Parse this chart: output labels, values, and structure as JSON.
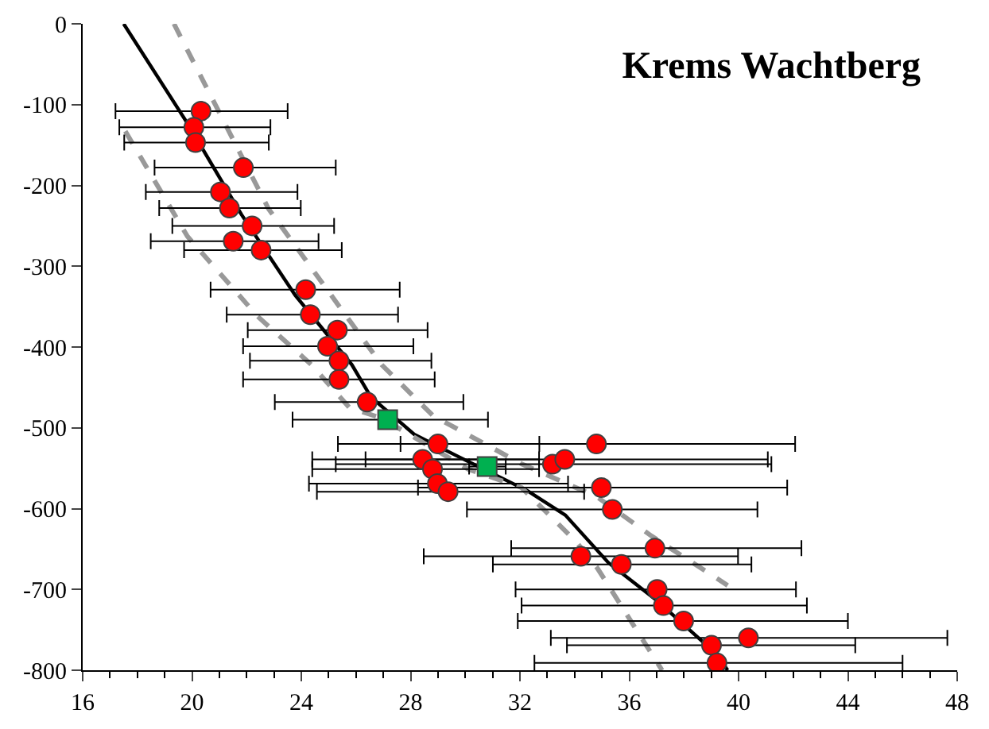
{
  "chart_data": {
    "type": "scatter",
    "title": "Krems Wachtberg",
    "xlim": [
      16,
      48
    ],
    "xticks": [
      16,
      20,
      24,
      28,
      32,
      36,
      40,
      44,
      48
    ],
    "ylim": [
      -800,
      0
    ],
    "yticks": [
      -800,
      -700,
      -600,
      -500,
      -400,
      -300,
      -200,
      -100,
      0
    ],
    "legend": false,
    "series": [
      {
        "type": "line",
        "color": "#000000",
        "line_style": "solid",
        "marker": "none",
        "x": [
          17.5,
          19.83,
          21.81,
          23.78,
          25.85,
          26.55,
          28.13,
          29.71,
          32.28,
          33.66,
          35.24,
          37.02,
          39.19,
          39.6
        ],
        "values": [
          0,
          -123,
          -236,
          -336,
          -422,
          -462,
          -508,
          -535,
          -578,
          -608,
          -667,
          -714,
          -780,
          -800
        ]
      },
      {
        "type": "line",
        "color": "#999999",
        "line_style": "dashed",
        "marker": "none",
        "x": [
          19.34,
          22.8,
          26.94,
          28.82,
          32.08,
          34.8,
          36.82,
          39.6
        ],
        "values": [
          0,
          -229,
          -422,
          -485,
          -545,
          -585,
          -634,
          -695
        ]
      },
      {
        "type": "line",
        "color": "#999999",
        "line_style": "dashed",
        "marker": "none",
        "x": [
          17.56,
          19.83,
          22.4,
          24.37,
          25.76,
          26.94,
          30.1,
          32.06,
          34.06,
          34.84,
          37.2
        ],
        "values": [
          -133,
          -263,
          -362,
          -422,
          -475,
          -488,
          -551,
          -574,
          -641,
          -674,
          -800
        ]
      },
      {
        "color": "#ff0000",
        "marker": "circle",
        "x": [
          20.33,
          20.07,
          20.13,
          21.88,
          21.04,
          21.37,
          22.2,
          21.51,
          22.53,
          24.16,
          24.33,
          25.32,
          24.96,
          25.38,
          25.38,
          26.41,
          29.0,
          34.8,
          28.44,
          28.8,
          33.19,
          33.64,
          28.98,
          29.37,
          34.98,
          35.38,
          36.94,
          34.23,
          35.71,
          37.02,
          37.25,
          37.99,
          40.36,
          39.01,
          39.21
        ],
        "values": [
          -108,
          -128,
          -147,
          -178,
          -208,
          -228,
          -250,
          -269,
          -280,
          -329,
          -360,
          -379,
          -399,
          -417,
          -440,
          -468,
          -520,
          -520,
          -539,
          -551,
          -545,
          -539,
          -569,
          -579,
          -574,
          -601,
          -649,
          -659,
          -669,
          -700,
          -720,
          -739,
          -760,
          -769,
          -791
        ],
        "xerrors": [
          [
            17.2,
            23.5
          ],
          [
            17.34,
            22.87
          ],
          [
            17.52,
            22.81
          ],
          [
            18.63,
            25.26
          ],
          [
            18.31,
            23.86
          ],
          [
            18.8,
            23.98
          ],
          [
            19.28,
            25.2
          ],
          [
            18.49,
            24.63
          ],
          [
            19.71,
            25.48
          ],
          [
            20.68,
            27.6
          ],
          [
            21.27,
            27.54
          ],
          [
            22.04,
            28.62
          ],
          [
            21.87,
            28.1
          ],
          [
            22.12,
            28.76
          ],
          [
            21.87,
            28.88
          ],
          [
            23.03,
            29.93
          ],
          [
            25.34,
            32.71
          ],
          [
            27.63,
            42.07
          ],
          [
            24.4,
            32.7
          ],
          [
            24.4,
            32.7
          ],
          [
            25.26,
            41.2
          ],
          [
            26.35,
            41.07
          ],
          [
            24.28,
            33.76
          ],
          [
            24.57,
            34.35
          ],
          [
            28.27,
            41.78
          ],
          [
            30.06,
            40.69
          ],
          [
            31.68,
            42.3
          ],
          [
            28.48,
            39.98
          ],
          [
            31.01,
            40.47
          ],
          [
            31.84,
            42.1
          ],
          [
            32.06,
            42.5
          ],
          [
            31.92,
            44.0
          ],
          [
            33.13,
            47.64
          ],
          [
            33.72,
            44.27
          ],
          [
            32.53,
            46.0
          ]
        ]
      },
      {
        "color": "#00b050",
        "marker": "square",
        "x": [
          27.16,
          30.8
        ],
        "values": [
          -490,
          -548
        ],
        "xerrors": [
          [
            23.68,
            30.83
          ],
          [
            30.14,
            31.48
          ]
        ]
      }
    ]
  }
}
